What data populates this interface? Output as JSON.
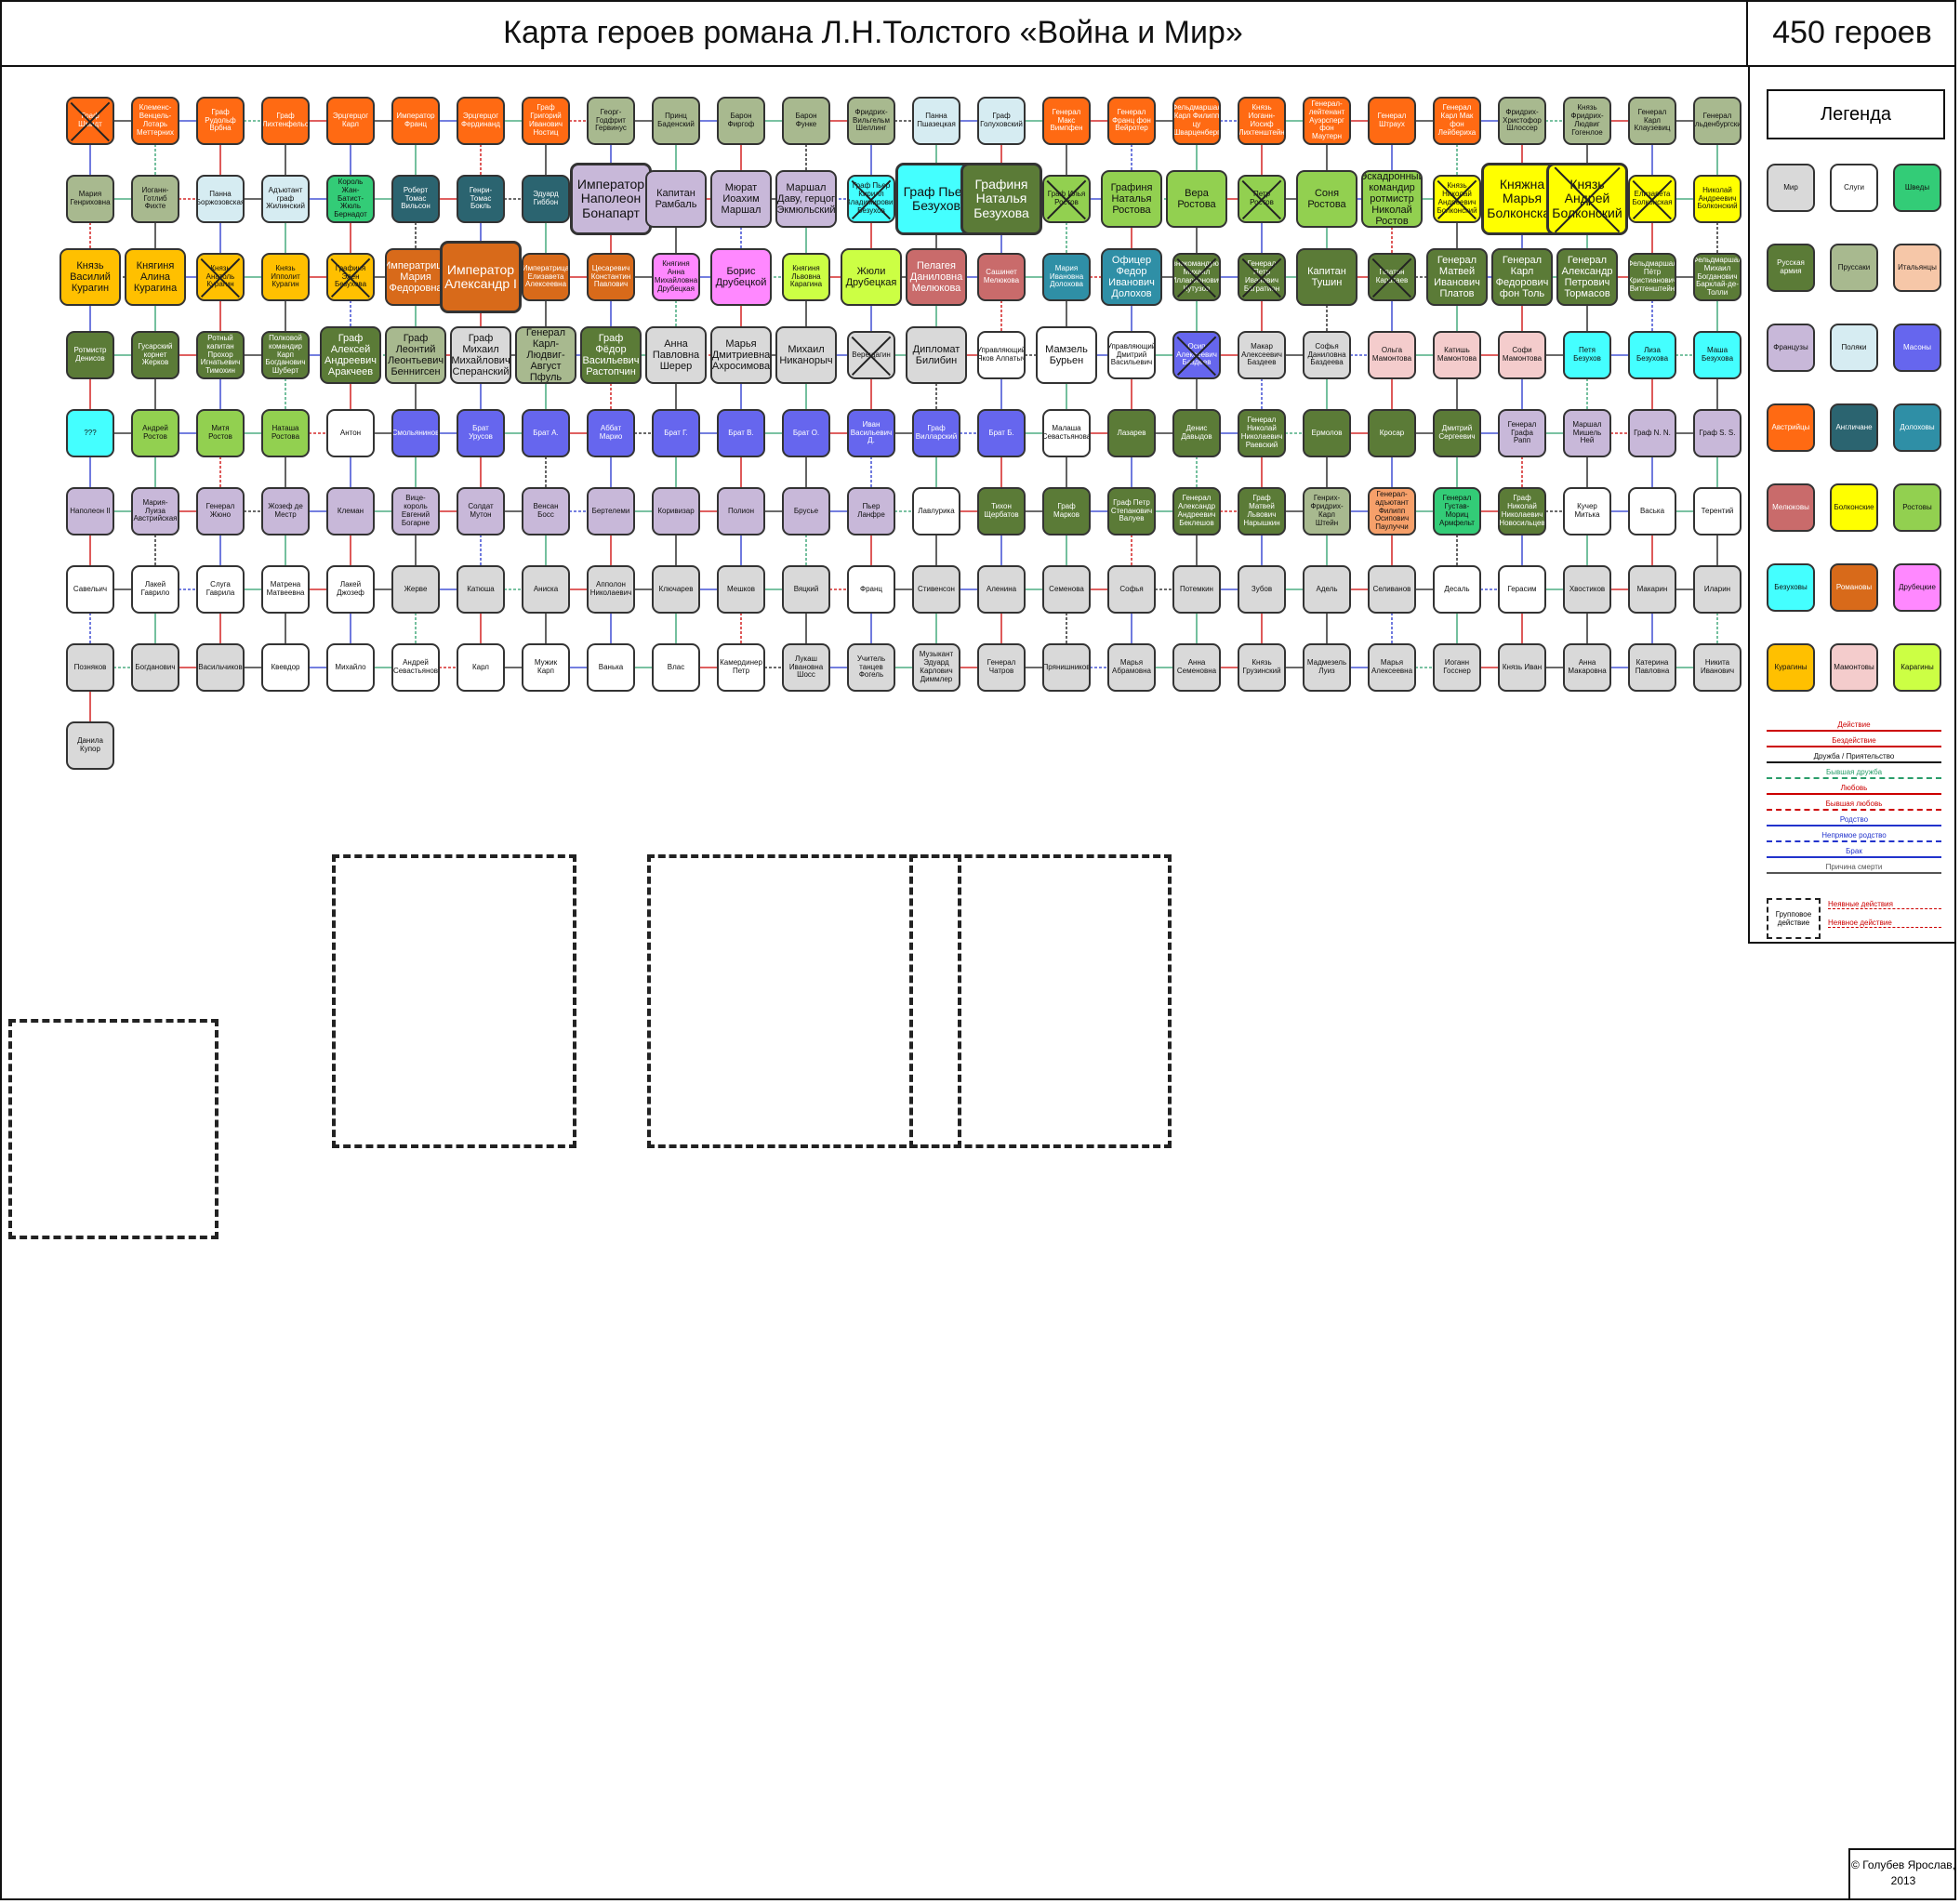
{
  "header": {
    "title": "Карта героев романа Л.Н.Толстого «Война и Мир»",
    "count": "450 героев"
  },
  "legend": {
    "title": "Легенда",
    "swatches": [
      {
        "label": "Мир",
        "color": "#d9d9d9"
      },
      {
        "label": "Слуги",
        "color": "#ffffff"
      },
      {
        "label": "Шведы",
        "color": "#33cc77"
      },
      {
        "label": "Русская армия",
        "color": "#5b7b37"
      },
      {
        "label": "Пруссаки",
        "color": "#a8b98f"
      },
      {
        "label": "Итальянцы",
        "color": "#f6c7a8"
      },
      {
        "label": "Французы",
        "color": "#c8b8d9"
      },
      {
        "label": "Поляки",
        "color": "#d6ecf2"
      },
      {
        "label": "Масоны",
        "color": "#6666ee"
      },
      {
        "label": "Австрийцы",
        "color": "#ff6a13"
      },
      {
        "label": "Англичане",
        "color": "#2b6470"
      },
      {
        "label": "Долоховы",
        "color": "#2f8fa6"
      },
      {
        "label": "Мелюковы",
        "color": "#c96b6b"
      },
      {
        "label": "Болконские",
        "color": "#ffff00"
      },
      {
        "label": "Ростовы",
        "color": "#92d050"
      },
      {
        "label": "Безуховы",
        "color": "#44ffff"
      },
      {
        "label": "Романовы",
        "color": "#d86a1a"
      },
      {
        "label": "Друбецкие",
        "color": "#ff88ff"
      },
      {
        "label": "Курагины",
        "color": "#ffc000"
      },
      {
        "label": "Мамонтовы",
        "color": "#f4cccc"
      },
      {
        "label": "Карагины",
        "color": "#ccff44"
      }
    ],
    "lines": [
      {
        "label": "Действие",
        "color": "#cc0000",
        "style": "solid"
      },
      {
        "label": "Бездействие",
        "color": "#cc0000",
        "style": "solid"
      },
      {
        "label": "Дружба / Приятельство",
        "color": "#111111",
        "style": "solid"
      },
      {
        "label": "Бывшая дружба",
        "color": "#2a9d6a",
        "style": "dashed"
      },
      {
        "label": "Любовь",
        "color": "#cc0000",
        "style": "solid"
      },
      {
        "label": "Бывшая любовь",
        "color": "#cc0000",
        "style": "dashed"
      },
      {
        "label": "Родство",
        "color": "#2233cc",
        "style": "solid"
      },
      {
        "label": "Непрямое родство",
        "color": "#2233cc",
        "style": "dashed"
      },
      {
        "label": "Брак",
        "color": "#2233cc",
        "style": "solid"
      },
      {
        "label": "Причина смерти",
        "color": "#555555",
        "style": "solid"
      }
    ],
    "group_label": "Групповое действие",
    "group_actions": [
      "Неявные действия",
      "Неявное действие"
    ]
  },
  "copyright": "© Голубев Ярослав, 2013",
  "nodes": [
    {
      "label": "Граф Шмидт",
      "color": "#ff6a13",
      "dead": true
    },
    {
      "label": "Клеменс-Венцель-Лотарь Меттерних",
      "color": "#ff6a13"
    },
    {
      "label": "Граф Рудольф Врбна",
      "color": "#ff6a13"
    },
    {
      "label": "Граф Лихтенфельс",
      "color": "#ff6a13"
    },
    {
      "label": "Эрцгерцог Карл",
      "color": "#ff6a13"
    },
    {
      "label": "Император Франц",
      "color": "#ff6a13"
    },
    {
      "label": "Эрцгерцог Фердинанд",
      "color": "#ff6a13"
    },
    {
      "label": "Граф Григорий Иванович Ностиц",
      "color": "#ff6a13"
    },
    {
      "label": "Георг-Годфрит Гервинус",
      "color": "#a8b98f"
    },
    {
      "label": "Принц Баденский",
      "color": "#a8b98f"
    },
    {
      "label": "Барон Фиргоф",
      "color": "#a8b98f"
    },
    {
      "label": "Барон Функе",
      "color": "#a8b98f"
    },
    {
      "label": "Фридрих-Вильгельм Шеллинг",
      "color": "#a8b98f"
    },
    {
      "label": "Панна Пшазецкая",
      "color": "#d6ecf2"
    },
    {
      "label": "Граф Голуховский",
      "color": "#d6ecf2"
    },
    {
      "label": "Генерал Макс Вимпфен",
      "color": "#ff6a13"
    },
    {
      "label": "Генерал Франц фон Вейротер",
      "color": "#ff6a13"
    },
    {
      "label": "Фельдмаршал Карл Филипп цу Шварценберг",
      "color": "#ff6a13"
    },
    {
      "label": "Князь Иоганн-Иосиф Лихтенштейн",
      "color": "#ff6a13"
    },
    {
      "label": "Генерал-лейтенант Ауэрсперг фон Маутерн",
      "color": "#ff6a13"
    },
    {
      "label": "Генерал Штраух",
      "color": "#ff6a13"
    },
    {
      "label": "Генерал Карл Мак фон Лейбериха",
      "color": "#ff6a13"
    },
    {
      "label": "Фридрих-Христофор Шлоссер",
      "color": "#a8b98f"
    },
    {
      "label": "Князь Фридрих-Людвиг Гогенлое",
      "color": "#a8b98f"
    },
    {
      "label": "Генерал Карл Клаузевиц",
      "color": "#a8b98f"
    },
    {
      "label": "Генерал Ольденбургский",
      "color": "#a8b98f"
    },
    {
      "label": "Мария Генриховна",
      "color": "#a8b98f"
    },
    {
      "label": "Иоганн-Готлиб Фихте",
      "color": "#a8b98f"
    },
    {
      "label": "Панна Боржозовская",
      "color": "#d6ecf2"
    },
    {
      "label": "Адъютант граф Жилинский",
      "color": "#d6ecf2"
    },
    {
      "label": "Король Жан-Батист-Жюль Бернадот",
      "color": "#33cc77"
    },
    {
      "label": "Роберт Томас Вильсон",
      "color": "#2b6470"
    },
    {
      "label": "Генри-Томас Бокль",
      "color": "#2b6470"
    },
    {
      "label": "Эдуард Гиббон",
      "color": "#2b6470"
    },
    {
      "label": "Император Наполеон Бонапарт",
      "color": "#c8b8d9",
      "size": "big"
    },
    {
      "label": "Капитан Рамбаль",
      "color": "#c8b8d9",
      "size": "mid"
    },
    {
      "label": "Мюрат Иоахим Маршал",
      "color": "#c8b8d9",
      "size": "mid"
    },
    {
      "label": "Маршал Даву, герцог Экмюльский",
      "color": "#c8b8d9",
      "size": "mid"
    },
    {
      "label": "Граф Пьер Кирилл Владимирович Безухов",
      "color": "#44ffff",
      "dead": true
    },
    {
      "label": "Граф Пьер Безухов",
      "color": "#44ffff",
      "size": "big"
    },
    {
      "label": "Графиня Наталья Безухова",
      "color": "#5b7b37",
      "size": "big"
    },
    {
      "label": "Граф Илья Ростов",
      "color": "#92d050",
      "dead": true
    },
    {
      "label": "Графиня Наталья Ростова",
      "color": "#92d050",
      "size": "mid"
    },
    {
      "label": "Вера Ростова",
      "color": "#92d050",
      "size": "mid"
    },
    {
      "label": "Петр Ростов",
      "color": "#92d050",
      "dead": true
    },
    {
      "label": "Соня Ростова",
      "color": "#92d050",
      "size": "mid"
    },
    {
      "label": "Эскадронный командир ротмистр Николай Ростов",
      "color": "#92d050",
      "size": "mid"
    },
    {
      "label": "Князь Николай Андреевич Болконский",
      "color": "#ffff00",
      "dead": true
    },
    {
      "label": "Княжна Марья Болконская",
      "color": "#ffff00",
      "size": "big"
    },
    {
      "label": "Князь Андрей Болконский",
      "color": "#ffff00",
      "size": "big",
      "dead": true
    },
    {
      "label": "Елизавета Болконская",
      "color": "#ffff00",
      "dead": true
    },
    {
      "label": "Николай Андреевич Болконский",
      "color": "#ffff00"
    },
    {
      "label": "Князь Василий Курагин",
      "color": "#ffc000",
      "size": "mid"
    },
    {
      "label": "Княгиня Алина Курагина",
      "color": "#ffc000",
      "size": "mid"
    },
    {
      "label": "Князь Анатоль Курагин",
      "color": "#ffc000",
      "dead": true
    },
    {
      "label": "Князь Ипполит Курагин",
      "color": "#ffc000"
    },
    {
      "label": "Графиня Элен Безухова",
      "color": "#ffc000",
      "dead": true
    },
    {
      "label": "Императрица Мария Федоровна",
      "color": "#d86a1a",
      "size": "mid"
    },
    {
      "label": "Император Александр I",
      "color": "#d86a1a",
      "size": "big"
    },
    {
      "label": "Императрица Елизавета Алексеевна",
      "color": "#d86a1a"
    },
    {
      "label": "Цесаревич Константин Павлович",
      "color": "#d86a1a"
    },
    {
      "label": "Княгиня Анна Михайловна Друбецкая",
      "color": "#ff88ff"
    },
    {
      "label": "Борис Друбецкой",
      "color": "#ff88ff",
      "size": "mid"
    },
    {
      "label": "Княгиня Львовна Карагина",
      "color": "#ccff44"
    },
    {
      "label": "Жюли Друбецкая",
      "color": "#ccff44",
      "size": "mid"
    },
    {
      "label": "Пелагея Даниловна Мелюкова",
      "color": "#c96b6b",
      "size": "mid"
    },
    {
      "label": "Сашинет Мелюкова",
      "color": "#c96b6b"
    },
    {
      "label": "Мария Ивановна Долохова",
      "color": "#2f8fa6"
    },
    {
      "label": "Офицер Федор Иванович Долохов",
      "color": "#2f8fa6",
      "size": "mid"
    },
    {
      "label": "Главнокомандующий Михаил Илларионович Кутузов",
      "color": "#5b7b37",
      "dead": true
    },
    {
      "label": "Генерал Петр Иванович Багратион",
      "color": "#5b7b37",
      "dead": true
    },
    {
      "label": "Капитан Тушин",
      "color": "#5b7b37",
      "size": "mid"
    },
    {
      "label": "Платон Каратаев",
      "color": "#5b7b37",
      "dead": true
    },
    {
      "label": "Генерал Матвей Иванович Платов",
      "color": "#5b7b37",
      "size": "mid"
    },
    {
      "label": "Генерал Карл Федорович фон Толь",
      "color": "#5b7b37",
      "size": "mid"
    },
    {
      "label": "Генерал Александр Петрович Тормасов",
      "color": "#5b7b37",
      "size": "mid"
    },
    {
      "label": "Фельдмаршал Пётр Христианович Витгенштейн",
      "color": "#5b7b37"
    },
    {
      "label": "Фельдмаршал Михаил Богданович Барклай-де-Толли",
      "color": "#5b7b37"
    },
    {
      "label": "Ротмистр Денисов",
      "color": "#5b7b37"
    },
    {
      "label": "Гусарский корнет Жерков",
      "color": "#5b7b37"
    },
    {
      "label": "Ротный капитан Прохор Игнатьевич Тимохин",
      "color": "#5b7b37"
    },
    {
      "label": "Полковой командир Карп Богданович Шуберт",
      "color": "#5b7b37"
    },
    {
      "label": "Граф Алексей Андреевич Аракчеев",
      "color": "#5b7b37",
      "size": "mid"
    },
    {
      "label": "Граф Леонтий Леонтьевич Беннигсен",
      "color": "#a8b98f",
      "size": "mid"
    },
    {
      "label": "Граф Михаил Михайлович Сперанский",
      "color": "#d9d9d9",
      "size": "mid"
    },
    {
      "label": "Генерал Карл-Людвиг-Август Пфуль",
      "color": "#a8b98f",
      "size": "mid"
    },
    {
      "label": "Граф Фёдор Васильевич Растопчин",
      "color": "#5b7b37",
      "size": "mid"
    },
    {
      "label": "Анна Павловна Шерер",
      "color": "#d9d9d9",
      "size": "mid"
    },
    {
      "label": "Марья Дмитриевна Ахросимова",
      "color": "#d9d9d9",
      "size": "mid"
    },
    {
      "label": "Михаил Никанорыч",
      "color": "#d9d9d9",
      "size": "mid"
    },
    {
      "label": "Верещагин",
      "color": "#d9d9d9",
      "dead": true
    },
    {
      "label": "Дипломат Билибин",
      "color": "#d9d9d9",
      "size": "mid"
    },
    {
      "label": "Управляющий Яков Алпатыч",
      "color": "#ffffff"
    },
    {
      "label": "Мамзель Бурьен",
      "color": "#ffffff",
      "size": "mid"
    },
    {
      "label": "Управляющий Дмитрий Васильевич",
      "color": "#ffffff"
    },
    {
      "label": "Осип Алексеевич Баздеев",
      "color": "#6666ee",
      "dead": true
    },
    {
      "label": "Макар Алексеевич Баздеев",
      "color": "#d9d9d9"
    },
    {
      "label": "Софья Даниловна Баздеева",
      "color": "#d9d9d9"
    },
    {
      "label": "Ольга Мамонтова",
      "color": "#f4cccc"
    },
    {
      "label": "Катишь Мамонтова",
      "color": "#f4cccc"
    },
    {
      "label": "Софи Мамонтова",
      "color": "#f4cccc"
    },
    {
      "label": "Петя Безухов",
      "color": "#44ffff"
    },
    {
      "label": "Лиза Безухова",
      "color": "#44ffff"
    },
    {
      "label": "Маша Безухова",
      "color": "#44ffff"
    },
    {
      "label": "???",
      "color": "#44ffff"
    },
    {
      "label": "Андрей Ростов",
      "color": "#92d050"
    },
    {
      "label": "Митя Ростов",
      "color": "#92d050"
    },
    {
      "label": "Наташа Ростова",
      "color": "#92d050"
    },
    {
      "label": "Антон",
      "color": "#ffffff"
    },
    {
      "label": "Смольянинов",
      "color": "#6666ee"
    },
    {
      "label": "Брат Урусов",
      "color": "#6666ee"
    },
    {
      "label": "Брат А.",
      "color": "#6666ee"
    },
    {
      "label": "Аббат Марио",
      "color": "#6666ee"
    },
    {
      "label": "Брат Г.",
      "color": "#6666ee"
    },
    {
      "label": "Брат В.",
      "color": "#6666ee"
    },
    {
      "label": "Брат О.",
      "color": "#6666ee"
    },
    {
      "label": "Иван Васильевич Д.",
      "color": "#6666ee"
    },
    {
      "label": "Граф Вилларский",
      "color": "#6666ee"
    },
    {
      "label": "Брат Б.",
      "color": "#6666ee"
    },
    {
      "label": "Малаша Севастьянова",
      "color": "#ffffff"
    },
    {
      "label": "Лазарев",
      "color": "#5b7b37"
    },
    {
      "label": "Денис Давыдов",
      "color": "#5b7b37"
    },
    {
      "label": "Генерал Николай Николаевич Раевский",
      "color": "#5b7b37"
    },
    {
      "label": "Ермолов",
      "color": "#5b7b37"
    },
    {
      "label": "Кросар",
      "color": "#5b7b37"
    },
    {
      "label": "Дмитрий Сергеевич",
      "color": "#5b7b37"
    },
    {
      "label": "Генерал Графа Рапп",
      "color": "#c8b8d9"
    },
    {
      "label": "Маршал Мишель Ней",
      "color": "#c8b8d9"
    },
    {
      "label": "Граф N. N.",
      "color": "#c8b8d9"
    },
    {
      "label": "Граф S. S.",
      "color": "#c8b8d9"
    },
    {
      "label": "Наполеон II",
      "color": "#c8b8d9"
    },
    {
      "label": "Мария-Луиза Австрийская",
      "color": "#c8b8d9"
    },
    {
      "label": "Генерал Жюно",
      "color": "#c8b8d9"
    },
    {
      "label": "Жозеф де Местр",
      "color": "#c8b8d9"
    },
    {
      "label": "Клеман",
      "color": "#c8b8d9"
    },
    {
      "label": "Вице-король Евгений Богарне",
      "color": "#c8b8d9"
    },
    {
      "label": "Солдат Мутон",
      "color": "#c8b8d9"
    },
    {
      "label": "Венсан Босс",
      "color": "#c8b8d9"
    },
    {
      "label": "Бертелеми",
      "color": "#c8b8d9"
    },
    {
      "label": "Коривизар",
      "color": "#c8b8d9"
    },
    {
      "label": "Полион",
      "color": "#c8b8d9"
    },
    {
      "label": "Брусье",
      "color": "#c8b8d9"
    },
    {
      "label": "Пьер Ланфре",
      "color": "#c8b8d9"
    },
    {
      "label": "Лавлурика",
      "color": "#ffffff"
    },
    {
      "label": "Тихон Щербатов",
      "color": "#5b7b37"
    },
    {
      "label": "Граф Марков",
      "color": "#5b7b37"
    },
    {
      "label": "Граф Петр Степанович Валуев",
      "color": "#5b7b37"
    },
    {
      "label": "Генерал Александр Андреевич Беклешов",
      "color": "#5b7b37"
    },
    {
      "label": "Граф Матвей Львович Нарышкин",
      "color": "#5b7b37"
    },
    {
      "label": "Генрих-Фридрих-Карл Штейн",
      "color": "#a8b98f"
    },
    {
      "label": "Генерал-адъютант Филипп Осипович Паулуччи",
      "color": "#f6a06a"
    },
    {
      "label": "Генерал Густав-Мориц Армфельт",
      "color": "#33cc77"
    },
    {
      "label": "Граф Николай Николаевич Новосильцев",
      "color": "#5b7b37"
    },
    {
      "label": "Кучер Митька",
      "color": "#ffffff"
    },
    {
      "label": "Васька",
      "color": "#ffffff"
    },
    {
      "label": "Терентий",
      "color": "#ffffff"
    },
    {
      "label": "Савельич",
      "color": "#ffffff"
    },
    {
      "label": "Лакей Гаврило",
      "color": "#ffffff"
    },
    {
      "label": "Слуга Гаврила",
      "color": "#ffffff"
    },
    {
      "label": "Матрена Матвеевна",
      "color": "#ffffff"
    },
    {
      "label": "Лакей Джозеф",
      "color": "#ffffff"
    },
    {
      "label": "Жерве",
      "color": "#d9d9d9"
    },
    {
      "label": "Катюша",
      "color": "#d9d9d9"
    },
    {
      "label": "Аниска",
      "color": "#d9d9d9"
    },
    {
      "label": "Апполон Николаевич",
      "color": "#d9d9d9"
    },
    {
      "label": "Ключарев",
      "color": "#d9d9d9"
    },
    {
      "label": "Мешков",
      "color": "#d9d9d9"
    },
    {
      "label": "Вяцкий",
      "color": "#d9d9d9"
    },
    {
      "label": "Франц",
      "color": "#ffffff"
    },
    {
      "label": "Стивенсон",
      "color": "#d9d9d9"
    },
    {
      "label": "Аленина",
      "color": "#d9d9d9"
    },
    {
      "label": "Семенова",
      "color": "#d9d9d9"
    },
    {
      "label": "Софья",
      "color": "#d9d9d9"
    },
    {
      "label": "Потемкин",
      "color": "#d9d9d9"
    },
    {
      "label": "Зубов",
      "color": "#d9d9d9"
    },
    {
      "label": "Адель",
      "color": "#d9d9d9"
    },
    {
      "label": "Селиванов",
      "color": "#d9d9d9"
    },
    {
      "label": "Десаль",
      "color": "#ffffff"
    },
    {
      "label": "Герасим",
      "color": "#ffffff"
    },
    {
      "label": "Хвостиков",
      "color": "#d9d9d9"
    },
    {
      "label": "Макарин",
      "color": "#d9d9d9"
    },
    {
      "label": "Иларин",
      "color": "#d9d9d9"
    },
    {
      "label": "Позняков",
      "color": "#d9d9d9"
    },
    {
      "label": "Богданович",
      "color": "#d9d9d9"
    },
    {
      "label": "Васильчиков",
      "color": "#d9d9d9"
    },
    {
      "label": "Квевдор",
      "color": "#ffffff"
    },
    {
      "label": "Михайло",
      "color": "#ffffff"
    },
    {
      "label": "Андрей Севастьянов",
      "color": "#ffffff"
    },
    {
      "label": "Карл",
      "color": "#ffffff"
    },
    {
      "label": "Мужик Карп",
      "color": "#ffffff"
    },
    {
      "label": "Ванька",
      "color": "#ffffff"
    },
    {
      "label": "Влас",
      "color": "#ffffff"
    },
    {
      "label": "Камердинер Петр",
      "color": "#ffffff"
    },
    {
      "label": "Лукаш Ивановна Шосс",
      "color": "#d9d9d9"
    },
    {
      "label": "Учитель танцев Фогель",
      "color": "#d9d9d9"
    },
    {
      "label": "Музыкант Эдуард Карлович Диммлер",
      "color": "#d9d9d9"
    },
    {
      "label": "Генерал Чатров",
      "color": "#d9d9d9"
    },
    {
      "label": "Прянишников",
      "color": "#d9d9d9"
    },
    {
      "label": "Марья Абрамовна",
      "color": "#d9d9d9"
    },
    {
      "label": "Анна Семеновна",
      "color": "#d9d9d9"
    },
    {
      "label": "Князь Грузинский",
      "color": "#d9d9d9"
    },
    {
      "label": "Мадмезель Луиз",
      "color": "#d9d9d9"
    },
    {
      "label": "Марья Алексеевна",
      "color": "#d9d9d9"
    },
    {
      "label": "Иоганн Госснер",
      "color": "#d9d9d9"
    },
    {
      "label": "Князь Иван",
      "color": "#d9d9d9"
    },
    {
      "label": "Анна Макаровна",
      "color": "#d9d9d9"
    },
    {
      "label": "Катерина Павловна",
      "color": "#d9d9d9"
    },
    {
      "label": "Никита Иванович",
      "color": "#d9d9d9"
    },
    {
      "label": "Данила Купор",
      "color": "#d9d9d9"
    }
  ]
}
